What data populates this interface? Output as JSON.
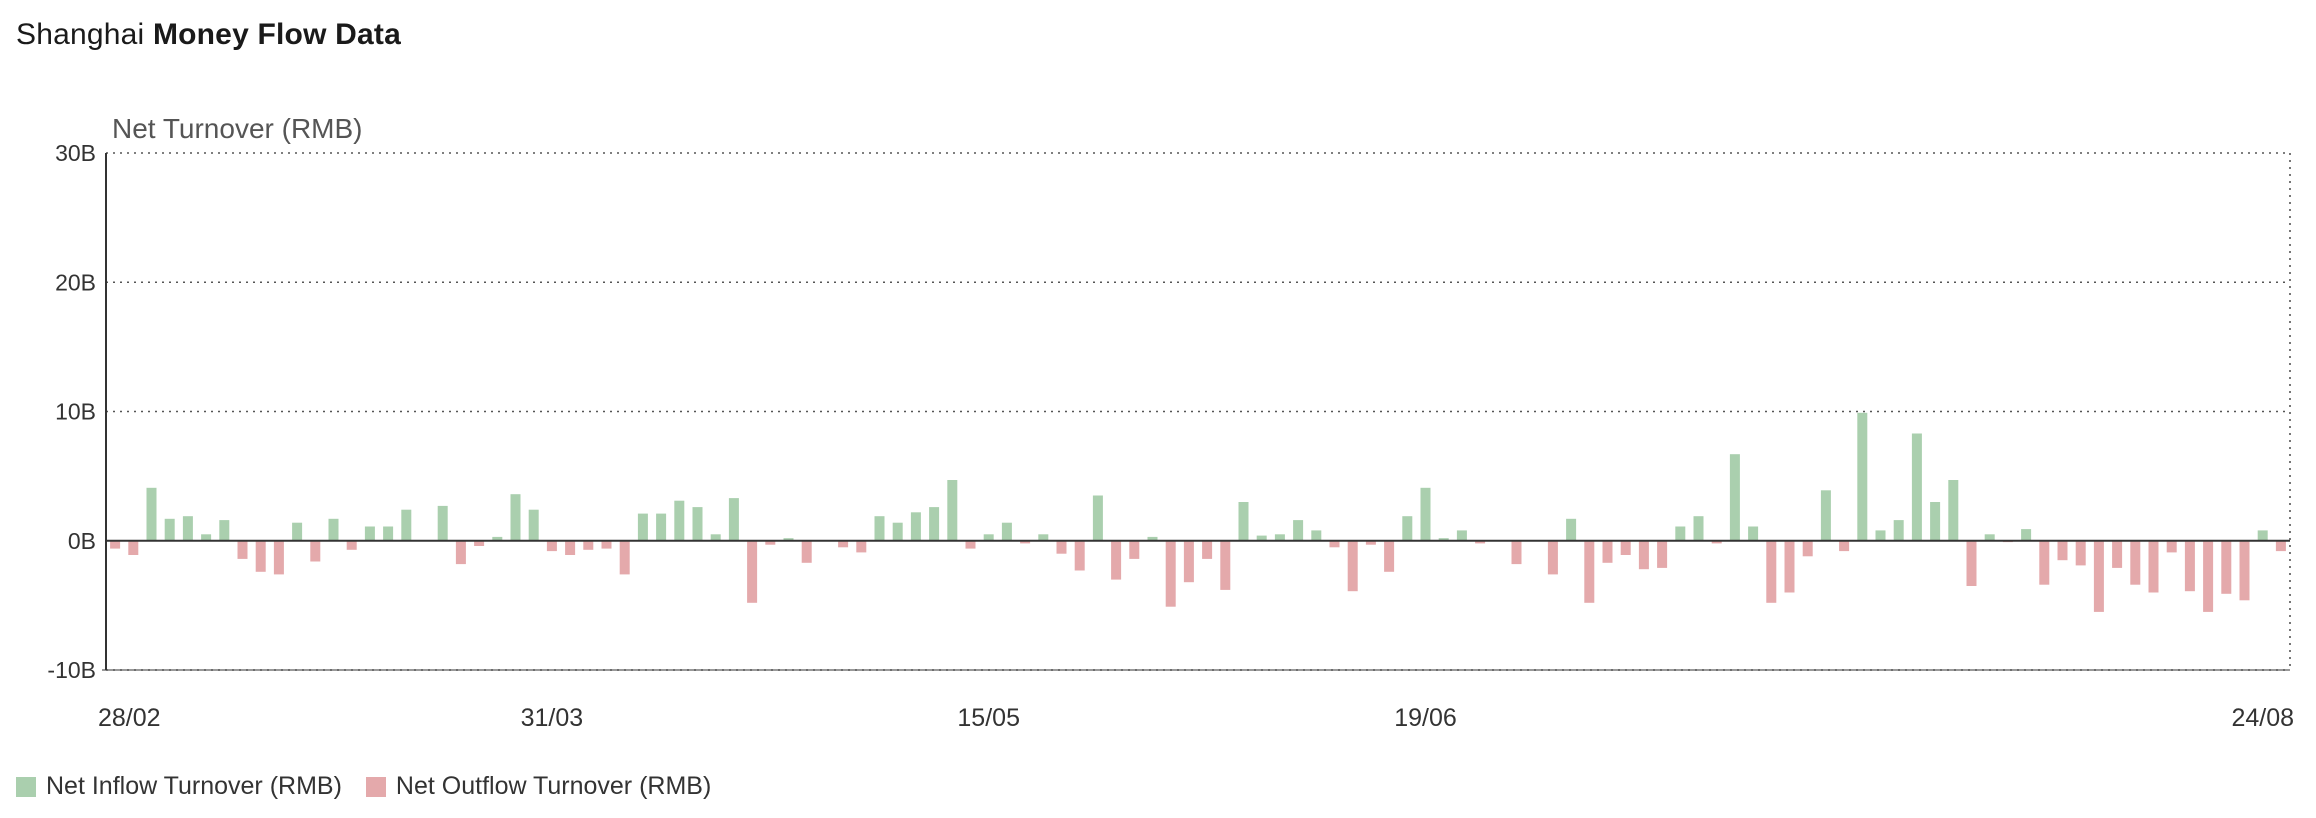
{
  "header": {
    "title_light": "Shanghai",
    "title_bold": "Money Flow Data"
  },
  "colors": {
    "inflow": "#aacfae",
    "outflow": "#e4a9ab",
    "zero_line": "#333333",
    "grid": "#555555"
  },
  "legend": {
    "inflow_label": "Net Inflow Turnover (RMB)",
    "outflow_label": "Net Outflow Turnover (RMB)"
  },
  "chart_data": {
    "type": "bar",
    "ylabel": "Net Turnover (RMB)",
    "unit": "B",
    "ylim": [
      -10,
      30
    ],
    "yticks": [
      {
        "value": 30,
        "label": "30B"
      },
      {
        "value": 20,
        "label": "20B"
      },
      {
        "value": 10,
        "label": "10B"
      },
      {
        "value": 0,
        "label": "0B"
      },
      {
        "value": -10,
        "label": "-10B"
      }
    ],
    "grid": true,
    "legend_position": "bottom-left",
    "x_range": [
      0,
      120
    ],
    "xticks": [
      {
        "index": 0,
        "label": "28/02"
      },
      {
        "index": 24,
        "label": "31/03"
      },
      {
        "index": 48,
        "label": "15/05"
      },
      {
        "index": 72,
        "label": "19/06"
      },
      {
        "index": 119,
        "label": "24/08"
      }
    ],
    "series": [
      {
        "name": "Net Inflow Turnover (RMB)",
        "points": [
          [
            2,
            4.1
          ],
          [
            3,
            1.7
          ],
          [
            4,
            1.9
          ],
          [
            5,
            0.5
          ],
          [
            6,
            1.6
          ],
          [
            10,
            1.4
          ],
          [
            12,
            1.7
          ],
          [
            14,
            1.1
          ],
          [
            15,
            1.1
          ],
          [
            16,
            2.4
          ],
          [
            18,
            2.7
          ],
          [
            21,
            0.3
          ],
          [
            22,
            3.6
          ],
          [
            23,
            2.4
          ],
          [
            29,
            2.1
          ],
          [
            30,
            2.1
          ],
          [
            31,
            3.1
          ],
          [
            32,
            2.6
          ],
          [
            33,
            0.5
          ],
          [
            34,
            3.3
          ],
          [
            37,
            0.2
          ],
          [
            42,
            1.9
          ],
          [
            43,
            1.4
          ],
          [
            44,
            2.2
          ],
          [
            45,
            2.6
          ],
          [
            46,
            4.7
          ],
          [
            48,
            0.5
          ],
          [
            49,
            1.4
          ],
          [
            51,
            0.5
          ],
          [
            54,
            3.5
          ],
          [
            57,
            0.3
          ],
          [
            62,
            3.0
          ],
          [
            63,
            0.4
          ],
          [
            64,
            0.5
          ],
          [
            65,
            1.6
          ],
          [
            66,
            0.8
          ],
          [
            71,
            1.9
          ],
          [
            72,
            4.1
          ],
          [
            73,
            0.2
          ],
          [
            74,
            0.8
          ],
          [
            80,
            1.7
          ],
          [
            86,
            1.1
          ],
          [
            87,
            1.9
          ],
          [
            89,
            6.7
          ],
          [
            90,
            1.1
          ],
          [
            94,
            3.9
          ],
          [
            96,
            9.9
          ],
          [
            97,
            0.8
          ],
          [
            98,
            1.6
          ],
          [
            99,
            8.3
          ],
          [
            100,
            3.0
          ],
          [
            101,
            4.7
          ],
          [
            103,
            0.5
          ],
          [
            105,
            0.9
          ],
          [
            118,
            0.8
          ]
        ]
      },
      {
        "name": "Net Outflow Turnover (RMB)",
        "points": [
          [
            0,
            -0.6
          ],
          [
            1,
            -1.1
          ],
          [
            7,
            -1.4
          ],
          [
            8,
            -2.4
          ],
          [
            9,
            -2.6
          ],
          [
            11,
            -1.6
          ],
          [
            13,
            -0.7
          ],
          [
            19,
            -1.8
          ],
          [
            20,
            -0.4
          ],
          [
            24,
            -0.8
          ],
          [
            25,
            -1.1
          ],
          [
            26,
            -0.7
          ],
          [
            27,
            -0.6
          ],
          [
            28,
            -2.6
          ],
          [
            35,
            -4.8
          ],
          [
            36,
            -0.3
          ],
          [
            38,
            -1.7
          ],
          [
            40,
            -0.5
          ],
          [
            41,
            -0.9
          ],
          [
            47,
            -0.6
          ],
          [
            50,
            -0.2
          ],
          [
            52,
            -1.0
          ],
          [
            53,
            -2.3
          ],
          [
            55,
            -3.0
          ],
          [
            56,
            -1.4
          ],
          [
            58,
            -5.1
          ],
          [
            59,
            -3.2
          ],
          [
            60,
            -1.4
          ],
          [
            61,
            -3.8
          ],
          [
            67,
            -0.5
          ],
          [
            68,
            -3.9
          ],
          [
            69,
            -0.3
          ],
          [
            70,
            -2.4
          ],
          [
            75,
            -0.2
          ],
          [
            77,
            -1.8
          ],
          [
            79,
            -2.6
          ],
          [
            81,
            -4.8
          ],
          [
            82,
            -1.7
          ],
          [
            83,
            -1.1
          ],
          [
            84,
            -2.2
          ],
          [
            85,
            -2.1
          ],
          [
            88,
            -0.2
          ],
          [
            91,
            -4.8
          ],
          [
            92,
            -4.0
          ],
          [
            93,
            -1.2
          ],
          [
            95,
            -0.8
          ],
          [
            102,
            -3.5
          ],
          [
            104,
            -0.1
          ],
          [
            106,
            -3.4
          ],
          [
            107,
            -1.5
          ],
          [
            108,
            -1.9
          ],
          [
            109,
            -5.5
          ],
          [
            110,
            -2.1
          ],
          [
            111,
            -3.4
          ],
          [
            112,
            -4.0
          ],
          [
            113,
            -0.9
          ],
          [
            114,
            -3.9
          ],
          [
            115,
            -5.5
          ],
          [
            116,
            -4.1
          ],
          [
            117,
            -4.6
          ],
          [
            119,
            -0.8
          ]
        ]
      }
    ]
  }
}
